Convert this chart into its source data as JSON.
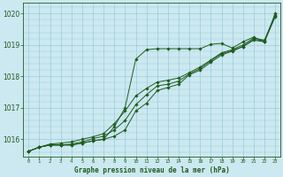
{
  "title": "Graphe pression niveau de la mer (hPa)",
  "hours": [
    0,
    1,
    2,
    3,
    4,
    5,
    6,
    7,
    8,
    9,
    10,
    11,
    12,
    13,
    14,
    15,
    16,
    17,
    18,
    19,
    20,
    21,
    22,
    23
  ],
  "ylim": [
    1015.45,
    1020.35
  ],
  "yticks": [
    1016,
    1017,
    1018,
    1019,
    1020
  ],
  "bg_color": "#cce8f0",
  "grid_color": "#99ccd9",
  "line_color": "#1f5c1f",
  "series1": [
    1015.62,
    1015.75,
    1015.82,
    1015.82,
    1015.82,
    1015.88,
    1015.95,
    1016.0,
    1016.1,
    1016.3,
    1016.9,
    1017.15,
    1017.55,
    1017.65,
    1017.75,
    1018.05,
    1018.2,
    1018.45,
    1018.68,
    1018.8,
    1018.95,
    1019.15,
    1019.1,
    1019.9
  ],
  "series2": [
    1015.62,
    1015.75,
    1015.82,
    1015.82,
    1015.85,
    1015.92,
    1016.02,
    1016.1,
    1016.3,
    1016.6,
    1017.1,
    1017.42,
    1017.7,
    1017.75,
    1017.85,
    1018.08,
    1018.25,
    1018.5,
    1018.72,
    1018.82,
    1018.95,
    1019.18,
    1019.12,
    1019.92
  ],
  "series3": [
    1015.62,
    1015.75,
    1015.85,
    1015.88,
    1015.92,
    1016.0,
    1016.08,
    1016.18,
    1016.5,
    1016.9,
    1017.38,
    1017.62,
    1017.82,
    1017.88,
    1017.95,
    1018.12,
    1018.3,
    1018.52,
    1018.75,
    1018.85,
    1019.0,
    1019.22,
    1019.15,
    1019.95
  ],
  "series4": [
    1015.62,
    1015.75,
    1015.82,
    1015.82,
    1015.82,
    1015.88,
    1015.95,
    1016.0,
    1016.4,
    1017.0,
    1018.55,
    1018.85,
    1018.88,
    1018.88,
    1018.88,
    1018.88,
    1018.88,
    1019.02,
    1019.05,
    1018.9,
    1019.1,
    1019.25,
    1019.1,
    1020.0
  ]
}
